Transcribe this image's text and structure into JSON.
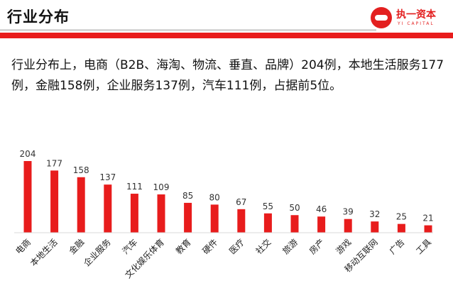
{
  "header": {
    "title": "行业分布",
    "logo_text": "执一资本",
    "logo_sub": "YI CAPITAL"
  },
  "summary": {
    "text": "行业分布上，电商（B2B、海淘、物流、垂直、品牌）204例，本地生活服务177例，金融158例，企业服务137例，汽车111例，占据前5位。"
  },
  "colors": {
    "accent": "#e81c1c"
  },
  "chart_data": {
    "type": "bar",
    "categories": [
      "电商",
      "本地生活",
      "金融",
      "企业服务",
      "汽车",
      "文化娱乐体育",
      "教育",
      "硬件",
      "医疗",
      "社交",
      "旅游",
      "房产",
      "游戏",
      "移动互联网",
      "广告",
      "工具"
    ],
    "values": [
      204,
      177,
      158,
      137,
      111,
      109,
      85,
      80,
      67,
      55,
      50,
      46,
      39,
      32,
      25,
      21
    ],
    "title": "",
    "xlabel": "",
    "ylabel": "",
    "ylim": [
      0,
      204
    ],
    "grid": false,
    "legend": "none",
    "bar_color": "#e81c1c"
  }
}
